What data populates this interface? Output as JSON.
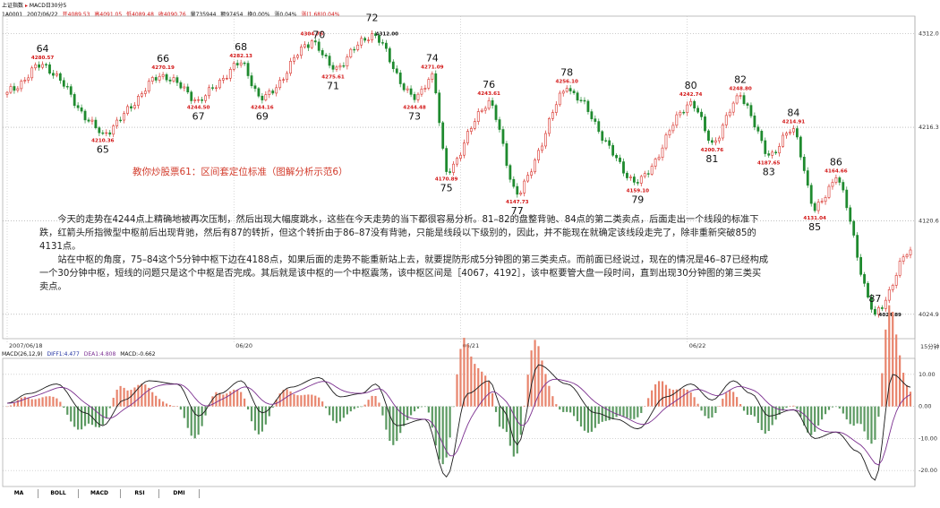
{
  "header": {
    "index_name": "上证指数",
    "period": "MACD日30分5",
    "code_line": "1A0001",
    "date": "2007/06/22",
    "open": "开4089.53",
    "high": "高4091.05",
    "low": "低4089.48",
    "close": "收4090.76",
    "volume": "量735944",
    "amount": "额97454",
    "turnover": "换0.00%",
    "ratio": "涨0.04%",
    "change": "涨(1.68)0.04%"
  },
  "heading": "教你炒股票61：区间套定位标准（图解分析示范6）",
  "caption": [
    "今天的走势在4244点上精确地被再次压制，然后出现大幅度跳水，这些在今天走势的当下都很容易分析。81–82的盘整背驰、84点的第二类卖点，后面走出一个线段的标准下跌，红箭头所指微型中枢前后出现背驰，然后有87的转折，但这个转折由于86–87没有背驰，只能是线段以下级别的，因此，并不能现在就确定该线段走完了，除非重新突破85的4131点。",
    "站在中枢的角度，75–84这个5分钟中枢下边在4188点，如果后面的走势不能重新站上去，就要提防形成5分钟图的第三类卖点。而前面已经说过，现在的情况是46–87已经构成一个30分钟中枢，短线的问题只是这个中枢是否完成。其后就是该中枢的一个中枢震荡，该中枢区间是［4067，4192］，该中枢要管大盘一段时间，直到出现30分钟图的第三类买卖点。"
  ],
  "macd_header": {
    "name": "MACD(26,12,9)",
    "diff": "DIFF1:4.477",
    "dea": "DEA1:4.808",
    "macd": "MACD:-0.662"
  },
  "tabs": [
    "MA",
    "BOLL",
    "MACD",
    "RSI",
    "DMI"
  ],
  "corner_label": "15分钟",
  "colors": {
    "up": "#d8312a",
    "down": "#1e8a2e",
    "diff": "#1a1a1a",
    "dea": "#7b2f8f",
    "hist_up": "#e8846c",
    "hist_down": "#5c9a62",
    "annot": "#d21414"
  },
  "chart_data": {
    "type": "line",
    "title": "",
    "xlabel": "",
    "ylabel": "",
    "ylim": [
      4000,
      4330
    ],
    "y_ticks": [
      4024.9,
      4120.6,
      4216.3,
      4312.0
    ],
    "x_date_labels": [
      {
        "idx": 0,
        "label": "2007/06/18"
      },
      {
        "idx": 64,
        "label": "06/20"
      },
      {
        "idx": 128,
        "label": "06/21"
      },
      {
        "idx": 192,
        "label": "06/22"
      }
    ],
    "n_bars": 256,
    "pivots": [
      [
        0,
        4252
      ],
      [
        10,
        4280.57
      ],
      [
        27,
        4210.36
      ],
      [
        44,
        4270.19
      ],
      [
        54,
        4244.5
      ],
      [
        66,
        4282.13
      ],
      [
        72,
        4244.16
      ],
      [
        86,
        4304.75
      ],
      [
        92,
        4275.61
      ],
      [
        103,
        4312.0
      ],
      [
        115,
        4244.48
      ],
      [
        120,
        4271.09
      ],
      [
        124,
        4170.89
      ],
      [
        136,
        4243.61
      ],
      [
        144,
        4147.73
      ],
      [
        158,
        4256.1
      ],
      [
        178,
        4159.1
      ],
      [
        193,
        4242.74
      ],
      [
        199,
        4200.76
      ],
      [
        207,
        4248.8
      ],
      [
        215,
        4187.65
      ],
      [
        222,
        4214.91
      ],
      [
        228,
        4131.04
      ],
      [
        234,
        4164.66
      ],
      [
        245,
        4024.89
      ],
      [
        255,
        4090.76
      ]
    ],
    "pivot_prices": [
      {
        "idx": 10,
        "price": "4280.57",
        "pos": "above"
      },
      {
        "idx": 27,
        "price": "4210.36",
        "pos": "below"
      },
      {
        "idx": 44,
        "price": "4270.19",
        "pos": "above"
      },
      {
        "idx": 54,
        "price": "4244.50",
        "pos": "below"
      },
      {
        "idx": 66,
        "price": "4282.13",
        "pos": "above"
      },
      {
        "idx": 72,
        "price": "4244.16",
        "pos": "below"
      },
      {
        "idx": 86,
        "price": "4304.75",
        "pos": "above"
      },
      {
        "idx": 92,
        "price": "4275.61",
        "pos": "below"
      },
      {
        "idx": 103,
        "price": "4312.00",
        "pos": "right"
      },
      {
        "idx": 115,
        "price": "4244.48",
        "pos": "below"
      },
      {
        "idx": 120,
        "price": "4271.09",
        "pos": "above"
      },
      {
        "idx": 124,
        "price": "4170.89",
        "pos": "below"
      },
      {
        "idx": 136,
        "price": "4243.61",
        "pos": "above"
      },
      {
        "idx": 144,
        "price": "4147.73",
        "pos": "below"
      },
      {
        "idx": 158,
        "price": "4256.10",
        "pos": "above"
      },
      {
        "idx": 178,
        "price": "4159.10",
        "pos": "below"
      },
      {
        "idx": 193,
        "price": "4242.74",
        "pos": "above"
      },
      {
        "idx": 199,
        "price": "4200.76",
        "pos": "below"
      },
      {
        "idx": 207,
        "price": "4248.80",
        "pos": "above"
      },
      {
        "idx": 215,
        "price": "4187.65",
        "pos": "below"
      },
      {
        "idx": 222,
        "price": "4214.91",
        "pos": "above"
      },
      {
        "idx": 228,
        "price": "4131.04",
        "pos": "below"
      },
      {
        "idx": 234,
        "price": "4164.66",
        "pos": "above"
      },
      {
        "idx": 245,
        "price": "4024.89",
        "pos": "right"
      }
    ],
    "segment_labels": [
      {
        "idx": 10,
        "label": "64",
        "pos": "above"
      },
      {
        "idx": 27,
        "label": "65",
        "pos": "below"
      },
      {
        "idx": 44,
        "label": "66",
        "pos": "above"
      },
      {
        "idx": 54,
        "label": "67",
        "pos": "below"
      },
      {
        "idx": 66,
        "label": "68",
        "pos": "above"
      },
      {
        "idx": 72,
        "label": "69",
        "pos": "below"
      },
      {
        "idx": 88,
        "label": "70",
        "pos": "above"
      },
      {
        "idx": 92,
        "label": "71",
        "pos": "below"
      },
      {
        "idx": 103,
        "label": "72",
        "pos": "above"
      },
      {
        "idx": 115,
        "label": "73",
        "pos": "below"
      },
      {
        "idx": 120,
        "label": "74",
        "pos": "above"
      },
      {
        "idx": 124,
        "label": "75",
        "pos": "below"
      },
      {
        "idx": 136,
        "label": "76",
        "pos": "above"
      },
      {
        "idx": 144,
        "label": "77",
        "pos": "below"
      },
      {
        "idx": 158,
        "label": "78",
        "pos": "above"
      },
      {
        "idx": 178,
        "label": "79",
        "pos": "below"
      },
      {
        "idx": 193,
        "label": "80",
        "pos": "above"
      },
      {
        "idx": 199,
        "label": "81",
        "pos": "below"
      },
      {
        "idx": 207,
        "label": "82",
        "pos": "above"
      },
      {
        "idx": 215,
        "label": "83",
        "pos": "below"
      },
      {
        "idx": 222,
        "label": "84",
        "pos": "above"
      },
      {
        "idx": 228,
        "label": "85",
        "pos": "below"
      },
      {
        "idx": 234,
        "label": "86",
        "pos": "above"
      },
      {
        "idx": 245,
        "label": "87",
        "pos": "above"
      }
    ],
    "macd_ylim": [
      -25,
      15
    ],
    "macd_ticks": [
      10,
      0,
      -10,
      -20
    ],
    "macd_pivots": [
      [
        0,
        1
      ],
      [
        6,
        4
      ],
      [
        14,
        7
      ],
      [
        22,
        -2
      ],
      [
        27,
        -6
      ],
      [
        33,
        2
      ],
      [
        40,
        8
      ],
      [
        48,
        7
      ],
      [
        54,
        -3
      ],
      [
        60,
        4
      ],
      [
        66,
        8
      ],
      [
        72,
        -2
      ],
      [
        80,
        6
      ],
      [
        88,
        9
      ],
      [
        94,
        3
      ],
      [
        100,
        4
      ],
      [
        104,
        7
      ],
      [
        110,
        -6
      ],
      [
        118,
        -4
      ],
      [
        124,
        -22
      ],
      [
        130,
        4
      ],
      [
        136,
        8
      ],
      [
        140,
        -1
      ],
      [
        144,
        -12
      ],
      [
        150,
        13
      ],
      [
        158,
        7
      ],
      [
        166,
        -2
      ],
      [
        172,
        -4
      ],
      [
        178,
        -7
      ],
      [
        186,
        3
      ],
      [
        193,
        7
      ],
      [
        199,
        2
      ],
      [
        205,
        8
      ],
      [
        210,
        4
      ],
      [
        215,
        -3
      ],
      [
        222,
        -1
      ],
      [
        228,
        -10
      ],
      [
        234,
        -8
      ],
      [
        240,
        -14
      ],
      [
        245,
        -23
      ],
      [
        250,
        10
      ],
      [
        255,
        6
      ]
    ]
  }
}
